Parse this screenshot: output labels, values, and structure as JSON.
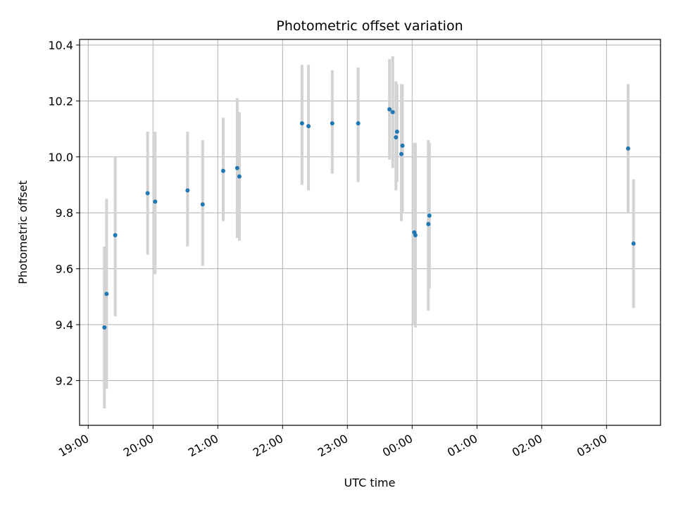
{
  "chart_data": {
    "type": "scatter",
    "title": "Photometric offset variation",
    "xlabel": "UTC time",
    "ylabel": "Photometric offset",
    "x_axis": "time",
    "xlim": [
      "19:00",
      "03:50"
    ],
    "ylim": [
      9.04,
      10.42
    ],
    "x_ticks": [
      "19:00",
      "20:00",
      "21:00",
      "22:00",
      "23:00",
      "00:00",
      "01:00",
      "02:00",
      "03:00"
    ],
    "y_ticks": [
      9.2,
      9.4,
      9.6,
      9.8,
      10.0,
      10.2,
      10.4
    ],
    "y_tick_labels": [
      "9.2",
      "9.4",
      "9.6",
      "9.8",
      "10.0",
      "10.2",
      "10.4"
    ],
    "grid": true,
    "colors": {
      "marker": "#1f77b4",
      "errorbar": "#d3d3d3",
      "grid": "#b0b0b0"
    },
    "points": [
      {
        "x": "19:15",
        "y": 9.39,
        "ylow": 9.1,
        "yhigh": 9.68
      },
      {
        "x": "19:17",
        "y": 9.51,
        "ylow": 9.17,
        "yhigh": 9.85
      },
      {
        "x": "19:25",
        "y": 9.72,
        "ylow": 9.43,
        "yhigh": 10.0
      },
      {
        "x": "19:55",
        "y": 9.87,
        "ylow": 9.65,
        "yhigh": 10.09
      },
      {
        "x": "20:02",
        "y": 9.84,
        "ylow": 9.58,
        "yhigh": 10.09
      },
      {
        "x": "20:32",
        "y": 9.88,
        "ylow": 9.68,
        "yhigh": 10.09
      },
      {
        "x": "20:46",
        "y": 9.83,
        "ylow": 9.61,
        "yhigh": 10.06
      },
      {
        "x": "21:05",
        "y": 9.95,
        "ylow": 9.77,
        "yhigh": 10.14
      },
      {
        "x": "21:18",
        "y": 9.96,
        "ylow": 9.71,
        "yhigh": 10.21
      },
      {
        "x": "21:20",
        "y": 9.93,
        "ylow": 9.7,
        "yhigh": 10.16
      },
      {
        "x": "22:18",
        "y": 10.12,
        "ylow": 9.9,
        "yhigh": 10.33
      },
      {
        "x": "22:24",
        "y": 10.11,
        "ylow": 9.88,
        "yhigh": 10.33
      },
      {
        "x": "22:46",
        "y": 10.12,
        "ylow": 9.94,
        "yhigh": 10.31
      },
      {
        "x": "23:10",
        "y": 10.12,
        "ylow": 9.91,
        "yhigh": 10.32
      },
      {
        "x": "23:39",
        "y": 10.17,
        "ylow": 9.99,
        "yhigh": 10.35
      },
      {
        "x": "23:42",
        "y": 10.16,
        "ylow": 9.96,
        "yhigh": 10.36
      },
      {
        "x": "23:45",
        "y": 10.07,
        "ylow": 9.88,
        "yhigh": 10.27
      },
      {
        "x": "23:46",
        "y": 10.09,
        "ylow": 9.91,
        "yhigh": 10.26
      },
      {
        "x": "23:50",
        "y": 10.01,
        "ylow": 9.77,
        "yhigh": 10.26
      },
      {
        "x": "23:51",
        "y": 10.04,
        "ylow": 9.8,
        "yhigh": 10.26
      },
      {
        "x": "00:02",
        "y": 9.73,
        "ylow": 9.4,
        "yhigh": 10.05
      },
      {
        "x": "00:03",
        "y": 9.72,
        "ylow": 9.39,
        "yhigh": 10.05
      },
      {
        "x": "00:15",
        "y": 9.76,
        "ylow": 9.45,
        "yhigh": 10.06
      },
      {
        "x": "00:16",
        "y": 9.79,
        "ylow": 9.53,
        "yhigh": 10.05
      },
      {
        "x": "03:20",
        "y": 10.03,
        "ylow": 9.8,
        "yhigh": 10.26
      },
      {
        "x": "03:25",
        "y": 9.69,
        "ylow": 9.46,
        "yhigh": 9.92
      }
    ]
  }
}
